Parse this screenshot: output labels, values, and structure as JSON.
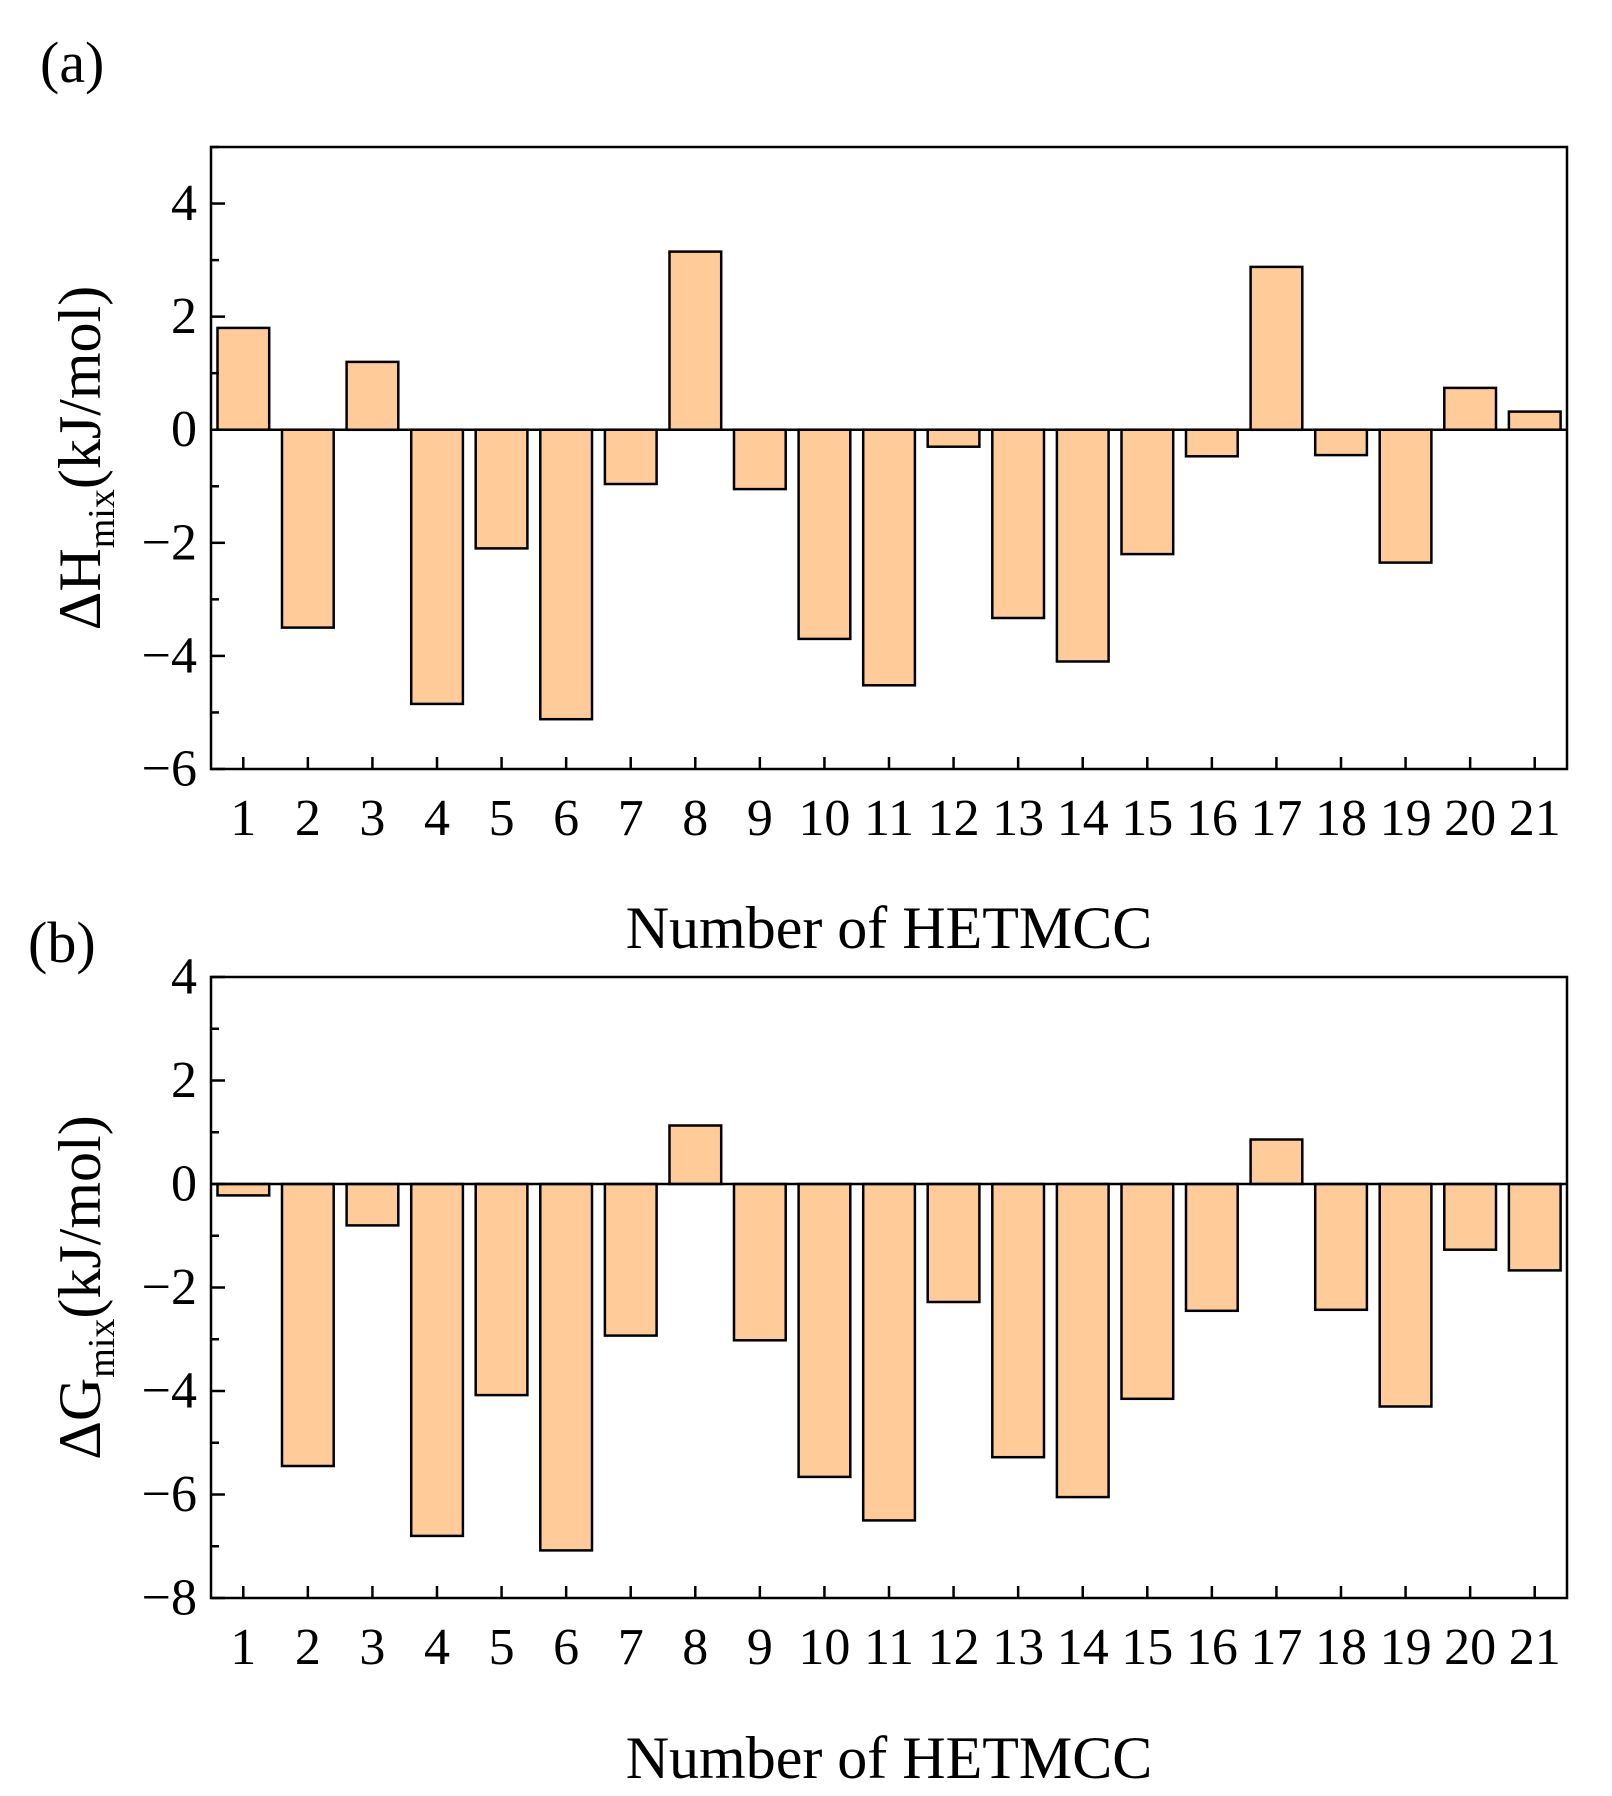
{
  "chart_data": [
    {
      "panel_label": "(a)",
      "type": "bar",
      "categories": [
        "1",
        "2",
        "3",
        "4",
        "5",
        "6",
        "7",
        "8",
        "9",
        "10",
        "11",
        "12",
        "13",
        "14",
        "15",
        "16",
        "17",
        "18",
        "19",
        "20",
        "21"
      ],
      "values": [
        1.8,
        -3.5,
        1.2,
        -4.85,
        -2.1,
        -5.12,
        -0.96,
        3.15,
        -1.05,
        -3.7,
        -4.52,
        -0.3,
        -3.33,
        -4.1,
        -2.2,
        -0.47,
        2.88,
        -0.45,
        -2.35,
        0.74,
        0.32
      ],
      "xlabel": "Number of HETMCC",
      "ylabel_main": "ΔH",
      "ylabel_sub": "mix",
      "ylabel_tail": "(kJ/mol)",
      "ylim": [
        -6,
        5
      ],
      "yticks": [
        {
          "value": -6,
          "label": "−6"
        },
        {
          "value": -4,
          "label": "−4"
        },
        {
          "value": -2,
          "label": "−2"
        },
        {
          "value": 0,
          "label": "0"
        },
        {
          "value": 2,
          "label": "2"
        },
        {
          "value": 4,
          "label": "4"
        }
      ],
      "y_minor_step": 1
    },
    {
      "panel_label": "(b)",
      "type": "bar",
      "categories": [
        "1",
        "2",
        "3",
        "4",
        "5",
        "6",
        "7",
        "8",
        "9",
        "10",
        "11",
        "12",
        "13",
        "14",
        "15",
        "16",
        "17",
        "18",
        "19",
        "20",
        "21"
      ],
      "values": [
        -0.22,
        -5.45,
        -0.8,
        -6.8,
        -4.08,
        -7.08,
        -2.93,
        1.13,
        -3.02,
        -5.66,
        -6.5,
        -2.28,
        -5.28,
        -6.05,
        -4.15,
        -2.45,
        0.86,
        -2.43,
        -4.3,
        -1.27,
        -1.67
      ],
      "xlabel": "Number of HETMCC",
      "ylabel_main": "ΔG",
      "ylabel_sub": "mix",
      "ylabel_tail": "(kJ/mol)",
      "ylim": [
        -8,
        4
      ],
      "yticks": [
        {
          "value": -8,
          "label": "−8"
        },
        {
          "value": -6,
          "label": "−6"
        },
        {
          "value": -4,
          "label": "−4"
        },
        {
          "value": -2,
          "label": "−2"
        },
        {
          "value": 0,
          "label": "0"
        },
        {
          "value": 2,
          "label": "2"
        },
        {
          "value": 4,
          "label": "4"
        }
      ],
      "y_minor_step": 1
    }
  ]
}
